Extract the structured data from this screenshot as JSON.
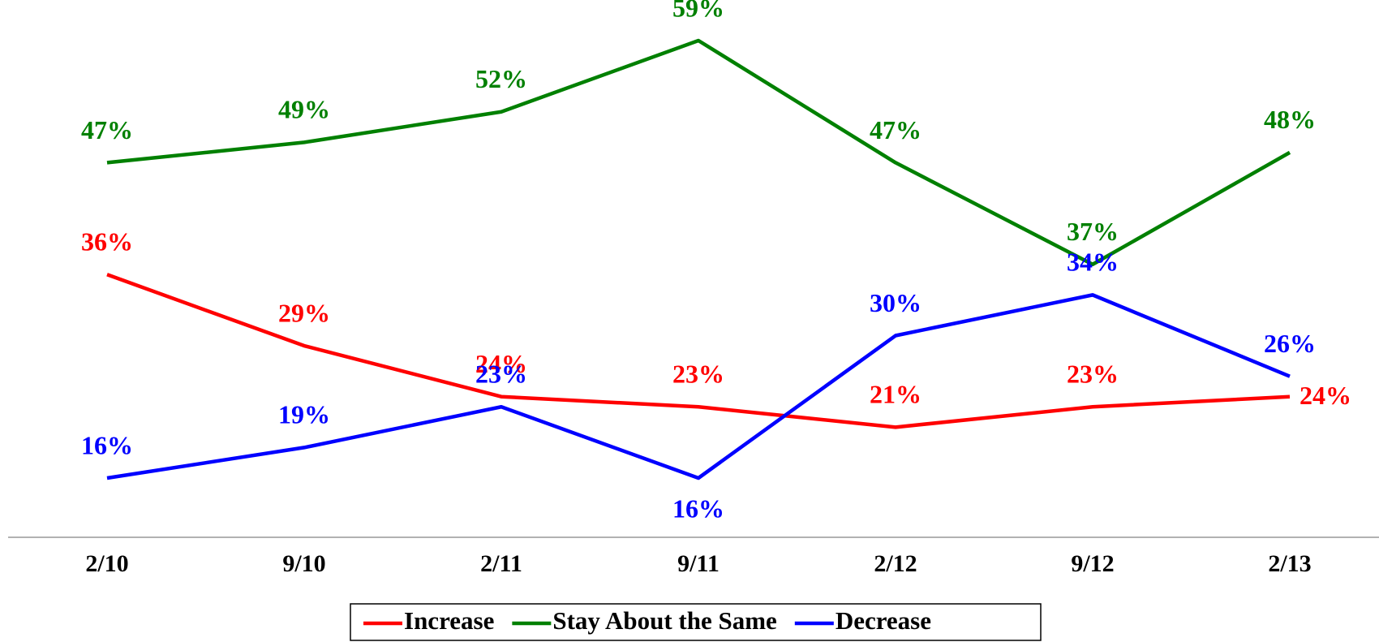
{
  "chart_data": {
    "type": "line",
    "categories": [
      "2/10",
      "9/10",
      "2/11",
      "9/11",
      "2/12",
      "9/12",
      "2/13"
    ],
    "series": [
      {
        "name": "Increase",
        "color": "#ff0000",
        "values": [
          36,
          29,
          24,
          23,
          21,
          23,
          24
        ],
        "value_labels": [
          "36%",
          "29%",
          "24%",
          "23%",
          "21%",
          "23%",
          "24%"
        ]
      },
      {
        "name": "Stay About the Same",
        "color": "#008000",
        "values": [
          47,
          49,
          52,
          59,
          47,
          37,
          48
        ],
        "value_labels": [
          "47%",
          "49%",
          "52%",
          "59%",
          "47%",
          "37%",
          "48%"
        ]
      },
      {
        "name": "Decrease",
        "color": "#0000ff",
        "values": [
          16,
          19,
          23,
          16,
          30,
          34,
          26
        ],
        "value_labels": [
          "16%",
          "19%",
          "23%",
          "16%",
          "30%",
          "34%",
          "26%"
        ]
      }
    ],
    "legend": "bottom"
  }
}
